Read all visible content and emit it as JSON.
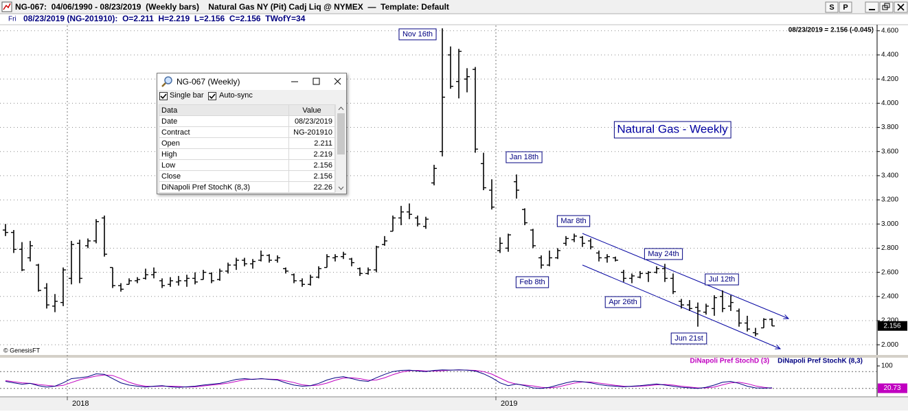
{
  "window": {
    "title": "NG-067:  04/06/1990 - 08/23/2019  (Weekly bars)    Natural Gas NY (Pit) Cadj Liq @ NYMEX  —  Template: Default",
    "buttons": [
      "S",
      "P"
    ]
  },
  "info": {
    "day": "Fri",
    "text": "08/23/2019 (NG-201910):  O=2.211  H=2.219  L=2.156  C=2.156  TWofY=34",
    "last": "08/23/2019 = 2.156 (-0.045)"
  },
  "copyright": "© GenesisFT",
  "data_window": {
    "title": "NG-067 (Weekly)",
    "options": [
      "Single bar",
      "Auto-sync"
    ],
    "columns": [
      "Data",
      "Value"
    ],
    "rows": [
      [
        "Date",
        "08/23/2019"
      ],
      [
        "Contract",
        "NG-201910"
      ],
      [
        "Open",
        "2.211"
      ],
      [
        "High",
        "2.219"
      ],
      [
        "Low",
        "2.156"
      ],
      [
        "Close",
        "2.156"
      ],
      [
        "DiNapoli Pref StochK (8,3)",
        "22.26"
      ]
    ]
  },
  "chart_data": [
    {
      "type": "ohlc",
      "title": "Natural Gas - Weekly",
      "color": "#000000",
      "grid": true,
      "categories": [
        null,
        null,
        null,
        null,
        null,
        null,
        null,
        null,
        "2018",
        null,
        null,
        null,
        null,
        null,
        null,
        null,
        null,
        null,
        null,
        null,
        null,
        null,
        null,
        null,
        null,
        null,
        null,
        null,
        null,
        null,
        null,
        null,
        null,
        null,
        null,
        null,
        null,
        null,
        null,
        null,
        null,
        null,
        null,
        null,
        null,
        null,
        null,
        null,
        null,
        null,
        null,
        null,
        null,
        null,
        null,
        null,
        null,
        null,
        null,
        null,
        "2019",
        null,
        null,
        null,
        null,
        null,
        null,
        null,
        null,
        null,
        null,
        null,
        null,
        null,
        null,
        null,
        null,
        null,
        null,
        null,
        null,
        null,
        null,
        null,
        null,
        null,
        null,
        null,
        null,
        null,
        null,
        null,
        null,
        null
      ],
      "open": [
        2.95,
        2.93,
        2.79,
        2.72,
        2.66,
        2.47,
        2.32,
        2.35,
        2.55,
        2.84,
        2.82,
        2.86,
        3.05,
        2.64,
        2.49,
        2.5,
        2.53,
        2.55,
        2.58,
        2.53,
        2.5,
        2.52,
        2.53,
        2.55,
        2.54,
        2.59,
        2.54,
        2.61,
        2.66,
        2.7,
        2.67,
        2.7,
        2.74,
        2.7,
        2.63,
        2.58,
        2.53,
        2.5,
        2.56,
        2.64,
        2.72,
        2.73,
        2.71,
        2.63,
        2.59,
        2.62,
        2.83,
        2.94,
        3.05,
        3.1,
        3.05,
        2.98,
        3.34,
        3.6,
        4.4,
        4.18,
        4.2,
        4.28,
        3.5,
        3.28,
        2.78,
        2.8,
        3.35,
        3.12,
        2.95,
        2.72,
        2.66,
        2.72,
        2.84,
        2.87,
        2.89,
        2.86,
        2.76,
        2.72,
        2.72,
        2.6,
        2.55,
        2.56,
        2.59,
        2.6,
        2.63,
        2.55,
        2.36,
        2.33,
        2.31,
        2.27,
        2.3,
        2.4,
        2.32,
        2.28,
        2.18,
        2.1,
        2.14,
        2.211
      ],
      "high": [
        3.0,
        2.95,
        2.85,
        2.86,
        2.67,
        2.51,
        2.42,
        2.64,
        2.86,
        2.87,
        2.88,
        3.04,
        3.07,
        2.64,
        2.51,
        2.55,
        2.56,
        2.63,
        2.64,
        2.55,
        2.56,
        2.57,
        2.58,
        2.6,
        2.62,
        2.6,
        2.63,
        2.68,
        2.72,
        2.72,
        2.71,
        2.78,
        2.75,
        2.74,
        2.64,
        2.59,
        2.55,
        2.58,
        2.65,
        2.75,
        2.75,
        2.77,
        2.72,
        2.64,
        2.64,
        2.82,
        2.9,
        3.07,
        3.15,
        3.17,
        3.07,
        3.06,
        3.49,
        4.62,
        4.47,
        4.45,
        4.29,
        4.3,
        3.59,
        3.37,
        2.89,
        2.92,
        3.41,
        3.13,
        2.96,
        2.74,
        2.78,
        2.8,
        2.9,
        2.92,
        2.9,
        2.88,
        2.78,
        2.75,
        2.73,
        2.62,
        2.59,
        2.61,
        2.61,
        2.65,
        2.67,
        2.59,
        2.38,
        2.37,
        2.35,
        2.34,
        2.41,
        2.45,
        2.41,
        2.3,
        2.24,
        2.14,
        2.22,
        2.219
      ],
      "low": [
        2.9,
        2.76,
        2.61,
        2.69,
        2.44,
        2.3,
        2.27,
        2.32,
        2.5,
        2.51,
        2.8,
        2.84,
        2.73,
        2.47,
        2.44,
        2.5,
        2.51,
        2.54,
        2.55,
        2.47,
        2.48,
        2.49,
        2.48,
        2.5,
        2.54,
        2.51,
        2.53,
        2.59,
        2.62,
        2.65,
        2.63,
        2.69,
        2.68,
        2.68,
        2.59,
        2.51,
        2.48,
        2.49,
        2.55,
        2.64,
        2.69,
        2.71,
        2.65,
        2.57,
        2.58,
        2.6,
        2.82,
        2.94,
        2.99,
        3.04,
        2.98,
        2.96,
        3.32,
        3.56,
        4.12,
        4.04,
        4.09,
        3.59,
        3.28,
        3.12,
        2.76,
        2.77,
        3.21,
        2.99,
        2.8,
        2.63,
        2.65,
        2.71,
        2.82,
        2.85,
        2.81,
        2.79,
        2.69,
        2.68,
        2.69,
        2.52,
        2.51,
        2.55,
        2.52,
        2.59,
        2.52,
        2.42,
        2.3,
        2.28,
        2.15,
        2.25,
        2.24,
        2.27,
        2.28,
        2.15,
        2.11,
        2.07,
        2.14,
        2.156
      ],
      "close": [
        2.93,
        2.79,
        2.62,
        2.82,
        2.45,
        2.33,
        2.36,
        2.62,
        2.83,
        2.55,
        2.86,
        3.02,
        2.75,
        2.49,
        2.46,
        2.53,
        2.54,
        2.58,
        2.6,
        2.49,
        2.53,
        2.53,
        2.55,
        2.52,
        2.6,
        2.53,
        2.61,
        2.66,
        2.7,
        2.67,
        2.69,
        2.74,
        2.7,
        2.72,
        2.61,
        2.53,
        2.5,
        2.56,
        2.63,
        2.73,
        2.73,
        2.75,
        2.68,
        2.59,
        2.62,
        2.81,
        2.86,
        3.05,
        3.1,
        3.08,
        3.0,
        3.04,
        3.46,
        4.05,
        4.14,
        4.43,
        4.22,
        3.62,
        3.3,
        3.14,
        2.84,
        2.91,
        3.28,
        3.01,
        2.82,
        2.66,
        2.72,
        2.78,
        2.88,
        2.9,
        2.84,
        2.81,
        2.72,
        2.73,
        2.7,
        2.55,
        2.57,
        2.59,
        2.6,
        2.63,
        2.55,
        2.44,
        2.33,
        2.3,
        2.28,
        2.32,
        2.39,
        2.3,
        2.35,
        2.18,
        2.13,
        2.09,
        2.21,
        2.156
      ],
      "ylim": [
        1.91,
        4.65
      ],
      "yticks": [
        {
          "value": 2,
          "label": "2.000"
        },
        {
          "value": 2.2,
          "label": "2.200"
        },
        {
          "value": 2.4,
          "label": "2.400"
        },
        {
          "value": 2.6,
          "label": "2.600"
        },
        {
          "value": 2.8,
          "label": "2.800"
        },
        {
          "value": 3,
          "label": "3.000"
        },
        {
          "value": 3.2,
          "label": "3.200"
        },
        {
          "value": 3.4,
          "label": "3.400"
        },
        {
          "value": 3.6,
          "label": "3.600"
        },
        {
          "value": 3.8,
          "label": "3.800"
        },
        {
          "value": 4,
          "label": "4.000"
        },
        {
          "value": 4.2,
          "label": "4.200"
        },
        {
          "value": 4.4,
          "label": "4.400"
        },
        {
          "value": 4.6,
          "label": "4.600"
        }
      ],
      "annotations": [
        "Nov 16th",
        "Jan 18th",
        "Mar 8th",
        "Feb 8th",
        "May 24th",
        "Apr 26th",
        "Jul 12th",
        "Jun 21st"
      ]
    },
    {
      "type": "line",
      "series": [
        {
          "name": "DiNapoli Pref StochD (3)",
          "color": "#c000c0",
          "values": [
            48,
            44,
            40,
            38,
            34,
            31,
            28,
            31,
            41,
            51,
            58,
            64,
            68,
            66,
            55,
            42,
            33,
            28,
            27,
            28,
            28,
            27,
            25,
            26,
            29,
            32,
            35,
            39,
            45,
            51,
            53,
            54,
            53,
            52,
            47,
            41,
            33,
            30,
            32,
            39,
            49,
            57,
            58,
            55,
            49,
            50,
            58,
            69,
            78,
            83,
            84,
            82,
            82,
            83,
            85,
            86,
            85,
            84,
            80,
            71,
            57,
            43,
            35,
            32,
            29,
            24,
            22,
            25,
            32,
            39,
            43,
            43,
            39,
            35,
            31,
            28,
            27,
            28,
            30,
            33,
            34,
            32,
            28,
            25,
            22,
            22,
            25,
            33,
            40,
            42,
            37,
            29,
            24,
            20.73
          ]
        },
        {
          "name": "DiNapoli Pref StochK (8,3)",
          "color": "#000080",
          "values": [
            45,
            40,
            35,
            38,
            30,
            25,
            28,
            40,
            55,
            58,
            62,
            72,
            70,
            55,
            40,
            32,
            28,
            25,
            28,
            30,
            26,
            24,
            26,
            28,
            32,
            35,
            38,
            45,
            52,
            55,
            52,
            55,
            52,
            50,
            40,
            32,
            28,
            30,
            38,
            50,
            58,
            62,
            55,
            48,
            45,
            58,
            70,
            80,
            84,
            85,
            82,
            80,
            84,
            86,
            85,
            86,
            85,
            82,
            72,
            58,
            40,
            30,
            36,
            30,
            22,
            20,
            24,
            32,
            40,
            46,
            44,
            40,
            34,
            30,
            28,
            26,
            28,
            30,
            33,
            36,
            32,
            28,
            24,
            22,
            20,
            24,
            32,
            42,
            45,
            38,
            28,
            22,
            21,
            22.26
          ]
        }
      ],
      "ylim": [
        0,
        100
      ],
      "yticks": [
        100
      ],
      "levels": [
        80,
        20
      ]
    }
  ]
}
